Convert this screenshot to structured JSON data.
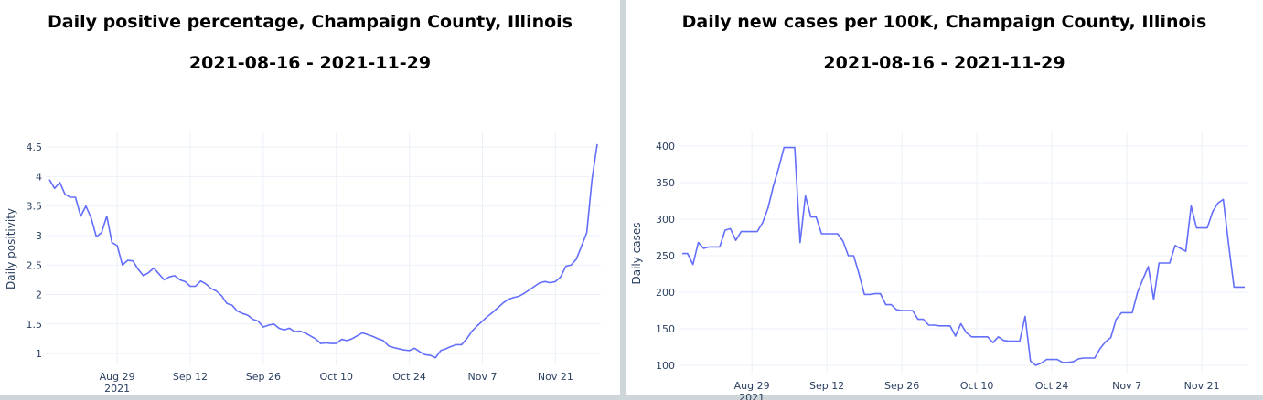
{
  "chart_data": [
    {
      "type": "line",
      "title": "Daily positive percentage, Champaign County, Illinois",
      "subtitle": "2021-08-16 - 2021-11-29",
      "y_label": "Daily positivity",
      "color": "#636efa",
      "grid": true,
      "x": [
        "2021-08-16",
        "2021-08-17",
        "2021-08-18",
        "2021-08-19",
        "2021-08-20",
        "2021-08-21",
        "2021-08-22",
        "2021-08-23",
        "2021-08-24",
        "2021-08-25",
        "2021-08-26",
        "2021-08-27",
        "2021-08-28",
        "2021-08-29",
        "2021-08-30",
        "2021-08-31",
        "2021-09-01",
        "2021-09-02",
        "2021-09-03",
        "2021-09-04",
        "2021-09-05",
        "2021-09-06",
        "2021-09-07",
        "2021-09-08",
        "2021-09-09",
        "2021-09-10",
        "2021-09-11",
        "2021-09-12",
        "2021-09-13",
        "2021-09-14",
        "2021-09-15",
        "2021-09-16",
        "2021-09-17",
        "2021-09-18",
        "2021-09-19",
        "2021-09-20",
        "2021-09-21",
        "2021-09-22",
        "2021-09-23",
        "2021-09-24",
        "2021-09-25",
        "2021-09-26",
        "2021-09-27",
        "2021-09-28",
        "2021-09-29",
        "2021-09-30",
        "2021-10-01",
        "2021-10-02",
        "2021-10-03",
        "2021-10-04",
        "2021-10-05",
        "2021-10-06",
        "2021-10-07",
        "2021-10-08",
        "2021-10-09",
        "2021-10-10",
        "2021-10-11",
        "2021-10-12",
        "2021-10-13",
        "2021-10-14",
        "2021-10-15",
        "2021-10-16",
        "2021-10-17",
        "2021-10-18",
        "2021-10-19",
        "2021-10-20",
        "2021-10-21",
        "2021-10-22",
        "2021-10-23",
        "2021-10-24",
        "2021-10-25",
        "2021-10-26",
        "2021-10-27",
        "2021-10-28",
        "2021-10-29",
        "2021-10-30",
        "2021-10-31",
        "2021-11-01",
        "2021-11-02",
        "2021-11-03",
        "2021-11-04",
        "2021-11-05",
        "2021-11-06",
        "2021-11-07",
        "2021-11-08",
        "2021-11-09",
        "2021-11-10",
        "2021-11-11",
        "2021-11-12",
        "2021-11-13",
        "2021-11-14",
        "2021-11-15",
        "2021-11-16",
        "2021-11-17",
        "2021-11-18",
        "2021-11-19",
        "2021-11-20",
        "2021-11-21",
        "2021-11-22",
        "2021-11-23",
        "2021-11-24",
        "2021-11-25",
        "2021-11-26",
        "2021-11-27",
        "2021-11-28",
        "2021-11-29"
      ],
      "values": [
        3.95,
        3.8,
        3.9,
        3.7,
        3.65,
        3.65,
        3.33,
        3.5,
        3.3,
        2.98,
        3.05,
        3.33,
        2.88,
        2.83,
        2.5,
        2.58,
        2.57,
        2.43,
        2.32,
        2.37,
        2.45,
        2.35,
        2.25,
        2.3,
        2.32,
        2.25,
        2.22,
        2.14,
        2.14,
        2.23,
        2.18,
        2.1,
        2.06,
        1.98,
        1.85,
        1.82,
        1.72,
        1.68,
        1.65,
        1.58,
        1.55,
        1.45,
        1.48,
        1.5,
        1.43,
        1.4,
        1.43,
        1.37,
        1.38,
        1.35,
        1.3,
        1.25,
        1.17,
        1.18,
        1.17,
        1.17,
        1.24,
        1.22,
        1.25,
        1.3,
        1.35,
        1.32,
        1.29,
        1.25,
        1.22,
        1.13,
        1.1,
        1.08,
        1.06,
        1.05,
        1.09,
        1.03,
        0.98,
        0.97,
        0.93,
        1.05,
        1.08,
        1.12,
        1.15,
        1.15,
        1.25,
        1.38,
        1.47,
        1.55,
        1.63,
        1.7,
        1.78,
        1.86,
        1.92,
        1.95,
        1.97,
        2.02,
        2.08,
        2.14,
        2.2,
        2.22,
        2.2,
        2.22,
        2.3,
        2.48,
        2.5,
        2.6,
        2.82,
        3.05,
        3.95,
        4.55
      ],
      "xlim": [
        "2021-08-16",
        "2021-11-29"
      ],
      "xticks": [
        {
          "value": "2021-08-29",
          "label": "Aug 29"
        },
        {
          "value": "2021-09-12",
          "label": "Sep 12"
        },
        {
          "value": "2021-09-26",
          "label": "Sep 26"
        },
        {
          "value": "2021-10-10",
          "label": "Oct 10"
        },
        {
          "value": "2021-10-24",
          "label": "Oct 24"
        },
        {
          "value": "2021-11-07",
          "label": "Nov 7"
        },
        {
          "value": "2021-11-21",
          "label": "Nov 21"
        }
      ],
      "xtick_year": "2021",
      "ylim": [
        0.8,
        4.75
      ],
      "yticks": [
        1,
        1.5,
        2,
        2.5,
        3,
        3.5,
        4,
        4.5
      ]
    },
    {
      "type": "line",
      "title": "Daily new cases per 100K, Champaign County, Illinois",
      "subtitle": "2021-08-16 - 2021-11-29",
      "y_label": "Daily cases",
      "color": "#636efa",
      "grid": true,
      "x": [
        "2021-08-16",
        "2021-08-17",
        "2021-08-18",
        "2021-08-19",
        "2021-08-20",
        "2021-08-21",
        "2021-08-22",
        "2021-08-23",
        "2021-08-24",
        "2021-08-25",
        "2021-08-26",
        "2021-08-27",
        "2021-08-28",
        "2021-08-29",
        "2021-08-30",
        "2021-08-31",
        "2021-09-01",
        "2021-09-02",
        "2021-09-03",
        "2021-09-04",
        "2021-09-05",
        "2021-09-06",
        "2021-09-07",
        "2021-09-08",
        "2021-09-09",
        "2021-09-10",
        "2021-09-11",
        "2021-09-12",
        "2021-09-13",
        "2021-09-14",
        "2021-09-15",
        "2021-09-16",
        "2021-09-17",
        "2021-09-18",
        "2021-09-19",
        "2021-09-20",
        "2021-09-21",
        "2021-09-22",
        "2021-09-23",
        "2021-09-24",
        "2021-09-25",
        "2021-09-26",
        "2021-09-27",
        "2021-09-28",
        "2021-09-29",
        "2021-09-30",
        "2021-10-01",
        "2021-10-02",
        "2021-10-03",
        "2021-10-04",
        "2021-10-05",
        "2021-10-06",
        "2021-10-07",
        "2021-10-08",
        "2021-10-09",
        "2021-10-10",
        "2021-10-11",
        "2021-10-12",
        "2021-10-13",
        "2021-10-14",
        "2021-10-15",
        "2021-10-16",
        "2021-10-17",
        "2021-10-18",
        "2021-10-19",
        "2021-10-20",
        "2021-10-21",
        "2021-10-22",
        "2021-10-23",
        "2021-10-24",
        "2021-10-25",
        "2021-10-26",
        "2021-10-27",
        "2021-10-28",
        "2021-10-29",
        "2021-10-30",
        "2021-10-31",
        "2021-11-01",
        "2021-11-02",
        "2021-11-03",
        "2021-11-04",
        "2021-11-05",
        "2021-11-06",
        "2021-11-07",
        "2021-11-08",
        "2021-11-09",
        "2021-11-10",
        "2021-11-11",
        "2021-11-12",
        "2021-11-13",
        "2021-11-14",
        "2021-11-15",
        "2021-11-16",
        "2021-11-17",
        "2021-11-18",
        "2021-11-19",
        "2021-11-20",
        "2021-11-21",
        "2021-11-22",
        "2021-11-23",
        "2021-11-24",
        "2021-11-25",
        "2021-11-26",
        "2021-11-27",
        "2021-11-28",
        "2021-11-29"
      ],
      "values": [
        253,
        253,
        238,
        268,
        260,
        262,
        262,
        262,
        285,
        287,
        271,
        283,
        283,
        283,
        283,
        295,
        315,
        345,
        370,
        398,
        398,
        398,
        268,
        332,
        303,
        303,
        280,
        280,
        280,
        280,
        270,
        250,
        250,
        225,
        197,
        197,
        198,
        198,
        183,
        183,
        176,
        175,
        175,
        175,
        163,
        163,
        155,
        155,
        154,
        154,
        154,
        140,
        157,
        145,
        139,
        139,
        139,
        139,
        131,
        139,
        134,
        133,
        133,
        133,
        167,
        106,
        100,
        103,
        108,
        108,
        108,
        104,
        104,
        105,
        109,
        110,
        110,
        110,
        123,
        132,
        138,
        163,
        172,
        172,
        172,
        200,
        218,
        235,
        190,
        240,
        240,
        240,
        264,
        260,
        256,
        318,
        288,
        288,
        288,
        310,
        322,
        327,
        265,
        207,
        207,
        207
      ],
      "xlim": [
        "2021-08-16",
        "2021-11-29"
      ],
      "xticks": [
        {
          "value": "2021-08-29",
          "label": "Aug 29"
        },
        {
          "value": "2021-09-12",
          "label": "Sep 12"
        },
        {
          "value": "2021-09-26",
          "label": "Sep 26"
        },
        {
          "value": "2021-10-10",
          "label": "Oct 10"
        },
        {
          "value": "2021-10-24",
          "label": "Oct 24"
        },
        {
          "value": "2021-11-07",
          "label": "Nov 7"
        },
        {
          "value": "2021-11-21",
          "label": "Nov 21"
        }
      ],
      "xtick_year": "2021",
      "ylim": [
        87.5,
        418.75
      ],
      "yticks": [
        100,
        150,
        200,
        250,
        300,
        350,
        400
      ]
    }
  ]
}
